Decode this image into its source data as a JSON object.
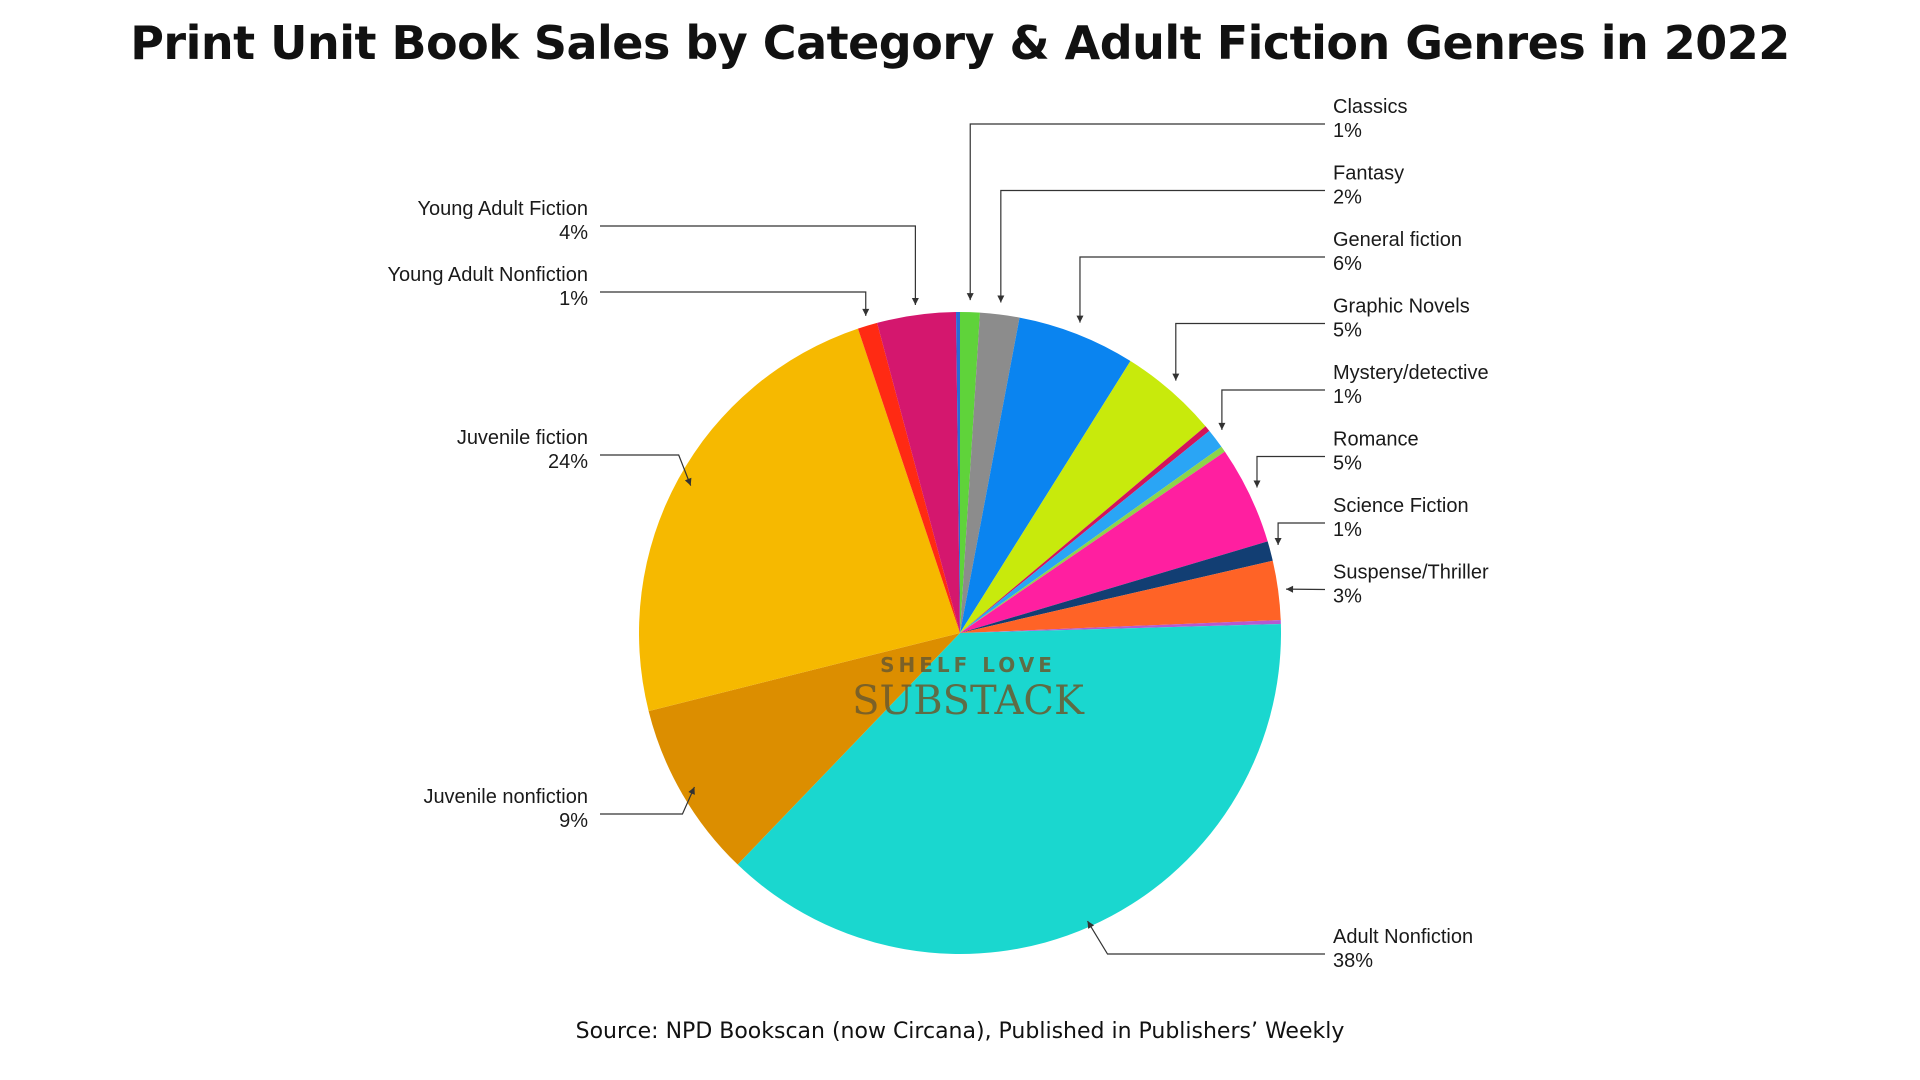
{
  "title": "Print Unit Book Sales by Category & Adult Fiction Genres in 2022",
  "source": "Source: NPD Bookscan (now Circana), Published in Publishers’ Weekly",
  "watermark": {
    "line1": "SHELF LOVE",
    "line2": "SUBSTACK"
  },
  "chart_data": {
    "type": "pie",
    "title": "Print Unit Book Sales by Category & Adult Fiction Genres in 2022",
    "unit": "%",
    "start": "12 o'clock, clockwise",
    "slices": [
      {
        "label": "Classics",
        "value": 1,
        "pct_label": "1%",
        "color": "#5fd33a",
        "label_side": "right"
      },
      {
        "label": "Fantasy",
        "value": 2,
        "pct_label": "2%",
        "color": "#8c8c8c",
        "label_side": "right"
      },
      {
        "label": "General fiction",
        "value": 6,
        "pct_label": "6%",
        "color": "#0a84f0",
        "label_side": "right"
      },
      {
        "label": "Graphic Novels",
        "value": 5,
        "pct_label": "5%",
        "color": "#c8ea0c",
        "label_side": "right"
      },
      {
        "label": "",
        "value": 0.3,
        "pct_label": "",
        "color": "#d4145a",
        "label_side": "none"
      },
      {
        "label": "Mystery/detective",
        "value": 1,
        "pct_label": "1%",
        "color": "#2aa5f5",
        "label_side": "right"
      },
      {
        "label": "",
        "value": 0.3,
        "pct_label": "",
        "color": "#8dd44a",
        "label_side": "none"
      },
      {
        "label": "Romance",
        "value": 5,
        "pct_label": "5%",
        "color": "#ff1fa0",
        "label_side": "right"
      },
      {
        "label": "Science Fiction",
        "value": 1,
        "pct_label": "1%",
        "color": "#123e73",
        "label_side": "right"
      },
      {
        "label": "Suspense/Thriller",
        "value": 3,
        "pct_label": "3%",
        "color": "#ff6326",
        "label_side": "right"
      },
      {
        "label": "",
        "value": 0.2,
        "pct_label": "",
        "color": "#b45ad1",
        "label_side": "none"
      },
      {
        "label": "Adult Nonfiction",
        "value": 38,
        "pct_label": "38%",
        "color": "#1ad7cf",
        "label_side": "right"
      },
      {
        "label": "Juvenile nonfiction",
        "value": 9,
        "pct_label": "9%",
        "color": "#dc8e00",
        "label_side": "left"
      },
      {
        "label": "Juvenile fiction",
        "value": 24,
        "pct_label": "24%",
        "color": "#f6b900",
        "label_side": "left"
      },
      {
        "label": "Young Adult Nonfiction",
        "value": 1,
        "pct_label": "1%",
        "color": "#ff2a13",
        "label_side": "left"
      },
      {
        "label": "Young Adult Fiction",
        "value": 4,
        "pct_label": "4%",
        "color": "#d4176e",
        "label_side": "left"
      },
      {
        "label": "",
        "value": 0.2,
        "pct_label": "",
        "color": "#2a6bd6",
        "label_side": "none"
      }
    ]
  }
}
